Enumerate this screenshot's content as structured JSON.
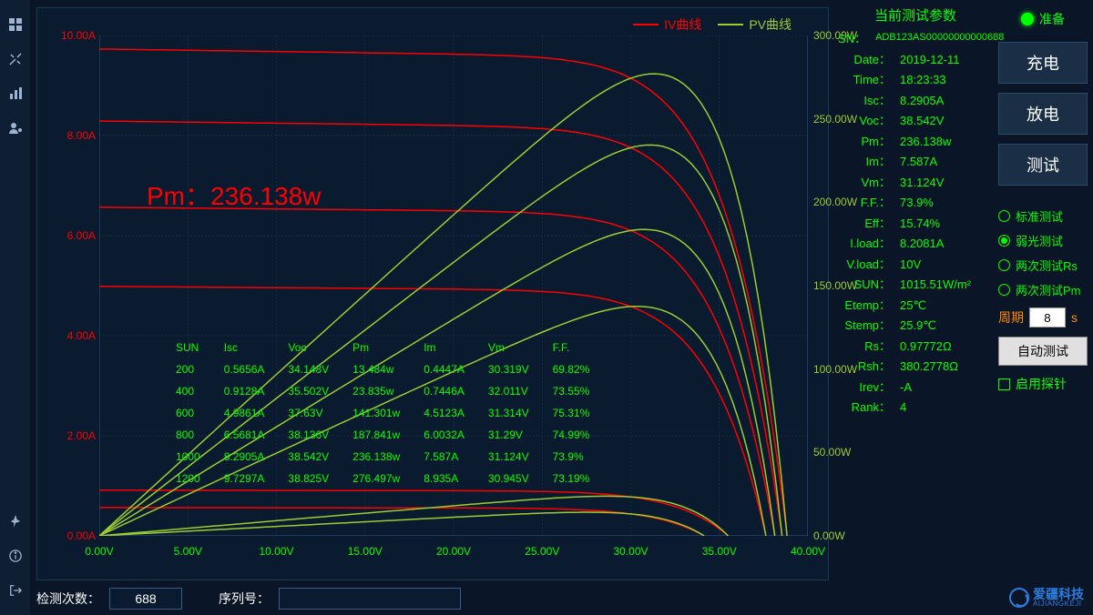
{
  "colors": {
    "bg": "#0a1628",
    "panel_bg": "#0a1a2f",
    "grid": "#1a3a5a",
    "iv_curve": "#ff0000",
    "pv_curve": "#9acd32",
    "text_green": "#00ff00",
    "text_orange": "#ff8800",
    "button_bg": "#1a2f45",
    "button_text": "#ffffff",
    "logo": "#2a7de1"
  },
  "chart": {
    "legend_iv": "IV曲线",
    "legend_pv": "PV曲线",
    "pm_label": "Pm：236.138w",
    "x_axis": {
      "min": 0,
      "max": 40,
      "step": 5,
      "unit": "V"
    },
    "y_left": {
      "min": 0,
      "max": 10,
      "step": 2,
      "unit": "A"
    },
    "y_right": {
      "min": 0,
      "max": 300,
      "step": 50,
      "unit": "W"
    },
    "iv_line_width": 1.5,
    "pv_line_width": 1.5,
    "curves": [
      {
        "isc": 0.5656,
        "voc": 34.148,
        "pmax": 13.484
      },
      {
        "isc": 0.9128,
        "voc": 35.502,
        "pmax": 23.835
      },
      {
        "isc": 4.9861,
        "voc": 37.63,
        "pmax": 141.301
      },
      {
        "isc": 6.5681,
        "voc": 38.136,
        "pmax": 187.841
      },
      {
        "isc": 8.2905,
        "voc": 38.542,
        "pmax": 236.138
      },
      {
        "isc": 9.7297,
        "voc": 38.825,
        "pmax": 276.497
      }
    ]
  },
  "overlay_table": {
    "headers": [
      "SUN",
      "Isc",
      "Voc",
      "Pm",
      "Im",
      "Vm",
      "F.F."
    ],
    "rows": [
      [
        "200",
        "0.5656A",
        "34.148V",
        "13.484w",
        "0.4447A",
        "30.319V",
        "69.82%"
      ],
      [
        "400",
        "0.9128A",
        "35.502V",
        "23.835w",
        "0.7446A",
        "32.011V",
        "73.55%"
      ],
      [
        "600",
        "4.9861A",
        "37.63V",
        "141.301w",
        "4.5123A",
        "31.314V",
        "75.31%"
      ],
      [
        "800",
        "6.5681A",
        "38.136V",
        "187.841w",
        "6.0032A",
        "31.29V",
        "74.99%"
      ],
      [
        "1000",
        "8.2905A",
        "38.542V",
        "236.138w",
        "7.587A",
        "31.124V",
        "73.9%"
      ],
      [
        "1200",
        "9.7297A",
        "38.825V",
        "276.497w",
        "8.935A",
        "30.945V",
        "73.19%"
      ]
    ]
  },
  "params": {
    "title": "当前测试参数",
    "items": [
      {
        "label": "SN：",
        "value": "ADB123AS00000000000688",
        "class": "sn"
      },
      {
        "label": "Date：",
        "value": "2019-12-11"
      },
      {
        "label": "Time：",
        "value": "18:23:33"
      },
      {
        "label": "Isc：",
        "value": "8.2905A"
      },
      {
        "label": "Voc：",
        "value": "38.542V"
      },
      {
        "label": "Pm：",
        "value": "236.138w"
      },
      {
        "label": "Im：",
        "value": "7.587A"
      },
      {
        "label": "Vm：",
        "value": "31.124V"
      },
      {
        "label": "F.F.：",
        "value": "73.9%"
      },
      {
        "label": "Eff：",
        "value": "15.74%"
      },
      {
        "label": "I.load：",
        "value": "8.2081A"
      },
      {
        "label": "V.load：",
        "value": "10V"
      },
      {
        "label": "SUN：",
        "value": "1015.51W/m²"
      },
      {
        "label": "Etemp：",
        "value": "25℃"
      },
      {
        "label": "Stemp：",
        "value": "25.9℃"
      },
      {
        "label": "Rs：",
        "value": "0.97772Ω"
      },
      {
        "label": "Rsh：",
        "value": "380.2778Ω"
      },
      {
        "label": "Irev：",
        "value": "-A"
      },
      {
        "label": "Rank：",
        "value": "4"
      }
    ]
  },
  "controls": {
    "status": "准备",
    "buttons": [
      "充电",
      "放电",
      "测试"
    ],
    "radios": [
      {
        "label": "标准测试",
        "on": false
      },
      {
        "label": "弱光测试",
        "on": true
      },
      {
        "label": "两次测试Rs",
        "on": false
      },
      {
        "label": "两次测试Pm",
        "on": false
      }
    ],
    "period_label": "周期",
    "period_value": "8",
    "period_unit": "s",
    "auto_test": "自动测试",
    "enable_probe": "启用探针"
  },
  "bottom": {
    "count_label": "检测次数：",
    "count_value": "688",
    "serial_label": "序列号：",
    "serial_value": ""
  },
  "logo": {
    "name": "爱疆科技",
    "sub": "AIJIANGKEJI"
  }
}
